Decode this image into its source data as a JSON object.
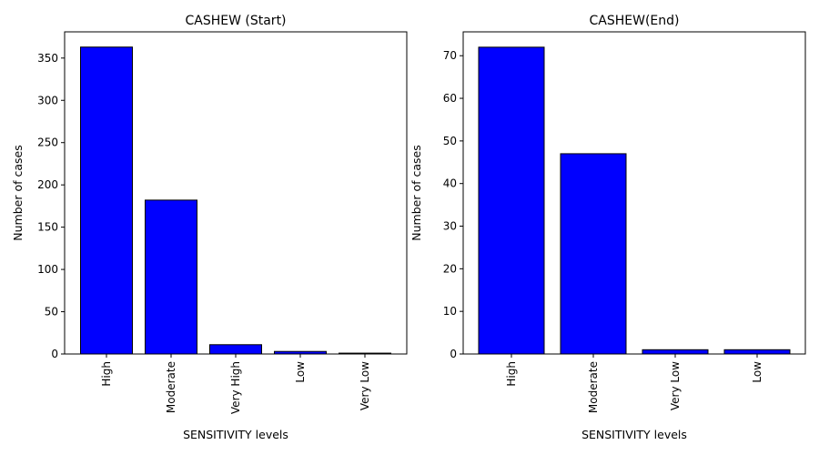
{
  "chart_data": [
    {
      "type": "bar",
      "title": "CASHEW (Start)",
      "xlabel": "SENSITIVITY levels",
      "ylabel": "Number of cases",
      "categories": [
        "High",
        "Moderate",
        "Very High",
        "Low",
        "Very Low"
      ],
      "values": [
        363,
        182,
        11,
        3,
        1
      ],
      "ylim": [
        0,
        381
      ],
      "yticks": [
        0,
        50,
        100,
        150,
        200,
        250,
        300,
        350
      ],
      "bar_color": "#0000ff",
      "grid": false
    },
    {
      "type": "bar",
      "title": "CASHEW(End)",
      "xlabel": "SENSITIVITY levels",
      "ylabel": "Number of cases",
      "categories": [
        "High",
        "Moderate",
        "Very Low",
        "Low"
      ],
      "values": [
        72,
        47,
        1,
        1
      ],
      "ylim": [
        0,
        75.6
      ],
      "yticks": [
        0,
        10,
        20,
        30,
        40,
        50,
        60,
        70
      ],
      "bar_color": "#0000ff",
      "grid": false
    }
  ]
}
